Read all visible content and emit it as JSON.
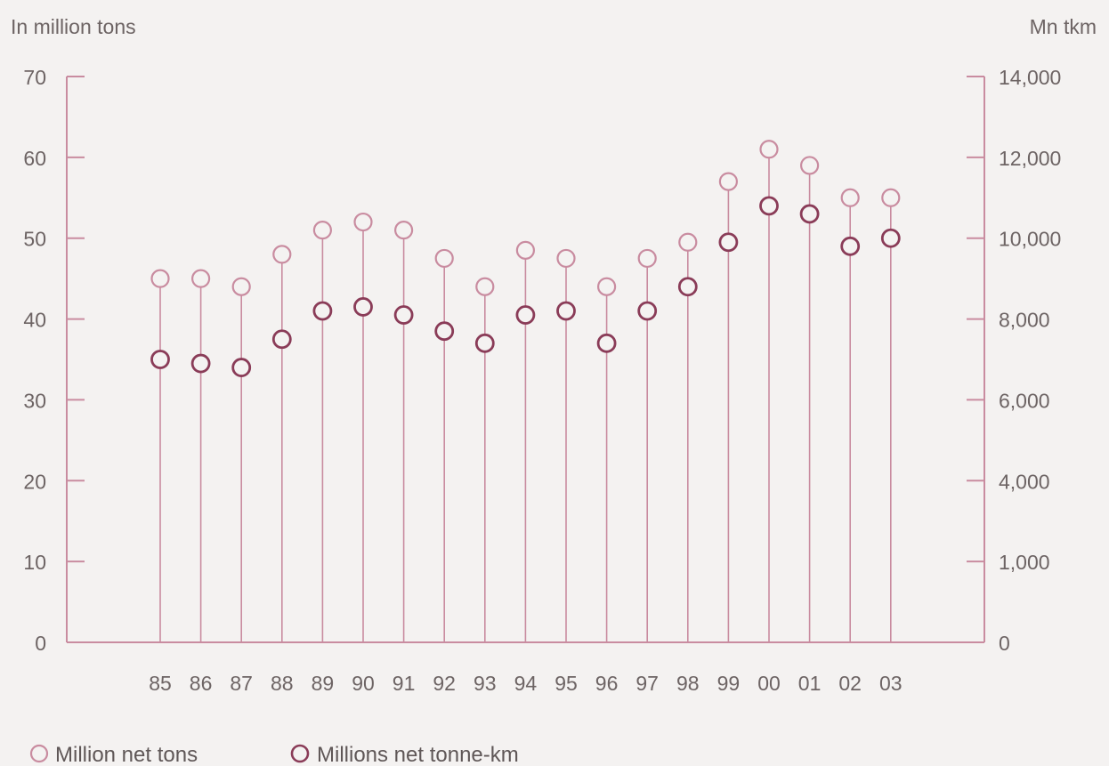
{
  "chart_data": {
    "type": "scatter",
    "title": "",
    "left_axis_label": "In million tons",
    "right_axis_label": "Mn tkm",
    "categories": [
      "85",
      "86",
      "87",
      "88",
      "89",
      "90",
      "91",
      "92",
      "93",
      "94",
      "95",
      "96",
      "97",
      "98",
      "99",
      "00",
      "01",
      "02",
      "03"
    ],
    "y_left_ticks": [
      "0",
      "10",
      "20",
      "30",
      "40",
      "50",
      "60",
      "70"
    ],
    "y_left_lim": [
      0,
      70
    ],
    "y_right_ticks": [
      "0",
      "1,000",
      "4,000",
      "6,000",
      "8,000",
      "10,000",
      "12,000",
      "14,000"
    ],
    "y_right_lim": [
      0,
      14000
    ],
    "series": [
      {
        "name": "Million net tons",
        "axis": "left",
        "color": "#c98ca0",
        "values": [
          45,
          45,
          44,
          48,
          51,
          52,
          51,
          47.5,
          44,
          48.5,
          47.5,
          44,
          47.5,
          49.5,
          57,
          61,
          59,
          55,
          55
        ]
      },
      {
        "name": "Millions net tonne-km",
        "axis": "right",
        "color": "#8a3c58",
        "values": [
          7000,
          6900,
          6800,
          7500,
          8200,
          8300,
          8100,
          7700,
          7400,
          8100,
          8200,
          7400,
          8200,
          8800,
          9900,
          10800,
          10600,
          9800,
          10000
        ]
      }
    ],
    "legend": [
      "Million net tons",
      "Millions net tonne-km"
    ],
    "legend_position": "bottom-left",
    "grid": false
  }
}
